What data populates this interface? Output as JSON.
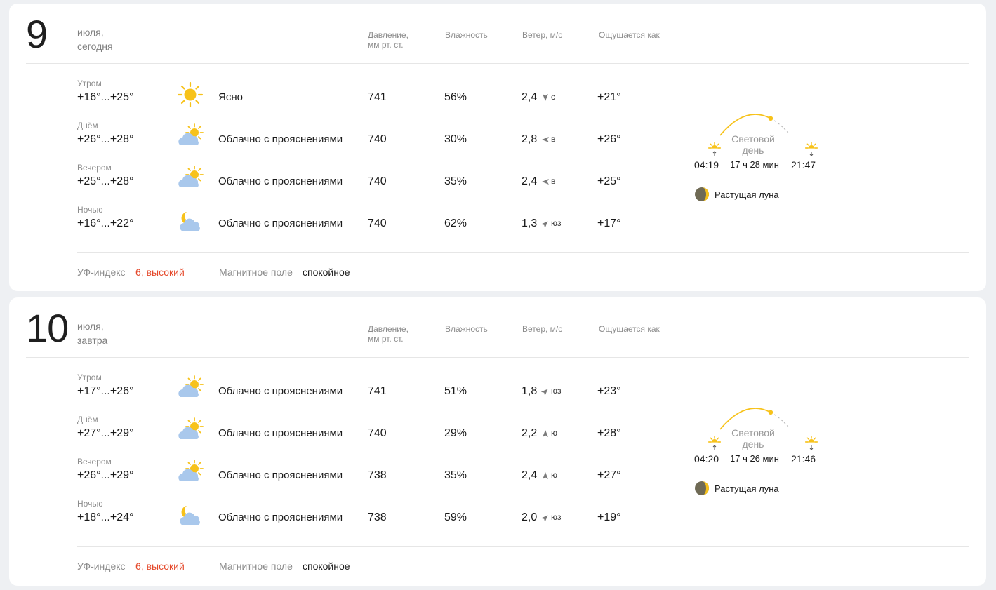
{
  "colors": {
    "accent_sun": "#f7c21a",
    "cloud": "#a9c8ec",
    "uv_high": "#e5492b",
    "muted_text": "#8c8c8c"
  },
  "headers": {
    "pressure_l1": "Давление,",
    "pressure_l2": "мм рт. ст.",
    "humidity": "Влажность",
    "wind": "Ветер, м/с",
    "feels_like": "Ощущается как"
  },
  "days": [
    {
      "day": "9",
      "month": "июля,",
      "relative": "сегодня",
      "rows": [
        {
          "part": "Утром",
          "temp": "+16°...+25°",
          "icon": "sun-icon",
          "condition": "Ясно",
          "pressure": "741",
          "humidity": "56%",
          "wind": "2,4",
          "wind_dir": "с",
          "wind_arrow": "down",
          "feels": "+21°"
        },
        {
          "part": "Днём",
          "temp": "+26°...+28°",
          "icon": "partly-cloudy-day-icon",
          "condition": "Облачно с прояснениями",
          "pressure": "740",
          "humidity": "30%",
          "wind": "2,8",
          "wind_dir": "в",
          "wind_arrow": "left",
          "feels": "+26°"
        },
        {
          "part": "Вечером",
          "temp": "+25°...+28°",
          "icon": "partly-cloudy-day-icon",
          "condition": "Облачно с прояснениями",
          "pressure": "740",
          "humidity": "35%",
          "wind": "2,4",
          "wind_dir": "в",
          "wind_arrow": "left",
          "feels": "+25°"
        },
        {
          "part": "Ночью",
          "temp": "+16°...+22°",
          "icon": "partly-cloudy-night-icon",
          "condition": "Облачно с прояснениями",
          "pressure": "740",
          "humidity": "62%",
          "wind": "1,3",
          "wind_dir": "юз",
          "wind_arrow": "up-right",
          "feels": "+17°"
        }
      ],
      "sun": {
        "label_1": "Световой",
        "label_2": "день",
        "sunrise": "04:19",
        "duration": "17 ч 28 мин",
        "sunset": "21:47",
        "progress": 0.72
      },
      "moon": "Растущая луна",
      "uv_label": "УФ-индекс",
      "uv_value": "6, высокий",
      "magnetic_label": "Магнитное поле",
      "magnetic_value": "спокойное"
    },
    {
      "day": "10",
      "month": "июля,",
      "relative": "завтра",
      "rows": [
        {
          "part": "Утром",
          "temp": "+17°...+26°",
          "icon": "partly-cloudy-day-icon",
          "condition": "Облачно с прояснениями",
          "pressure": "741",
          "humidity": "51%",
          "wind": "1,8",
          "wind_dir": "юз",
          "wind_arrow": "up-right",
          "feels": "+23°"
        },
        {
          "part": "Днём",
          "temp": "+27°...+29°",
          "icon": "partly-cloudy-day-icon",
          "condition": "Облачно с прояснениями",
          "pressure": "740",
          "humidity": "29%",
          "wind": "2,2",
          "wind_dir": "ю",
          "wind_arrow": "up",
          "feels": "+28°"
        },
        {
          "part": "Вечером",
          "temp": "+26°...+29°",
          "icon": "partly-cloudy-day-icon",
          "condition": "Облачно с прояснениями",
          "pressure": "738",
          "humidity": "35%",
          "wind": "2,4",
          "wind_dir": "ю",
          "wind_arrow": "up",
          "feels": "+27°"
        },
        {
          "part": "Ночью",
          "temp": "+18°...+24°",
          "icon": "partly-cloudy-night-icon",
          "condition": "Облачно с прояснениями",
          "pressure": "738",
          "humidity": "59%",
          "wind": "2,0",
          "wind_dir": "юз",
          "wind_arrow": "up-right",
          "feels": "+19°"
        }
      ],
      "sun": {
        "label_1": "Световой",
        "label_2": "день",
        "sunrise": "04:20",
        "duration": "17 ч 26 мин",
        "sunset": "21:46",
        "progress": 0.72
      },
      "moon": "Растущая луна",
      "uv_label": "УФ-индекс",
      "uv_value": "6, высокий",
      "magnetic_label": "Магнитное поле",
      "magnetic_value": "спокойное"
    }
  ]
}
